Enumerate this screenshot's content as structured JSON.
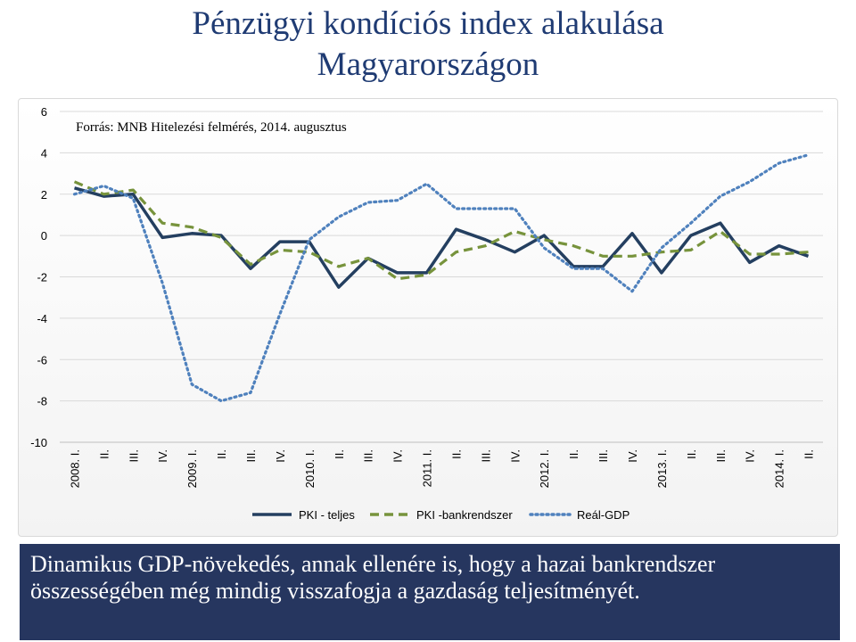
{
  "title": {
    "line1": "Pénzügyi kondíciós index alakulása",
    "line2": "Magyarországon"
  },
  "caption": "Dinamikus GDP-növekedés, annak ellenére is, hogy a hazai bankrendszer összességében még mindig visszafogja a gazdaság teljesítményét.",
  "chart_data": {
    "type": "line",
    "annotation": "Forrás: MNB Hitelezési felmérés, 2014. augusztus",
    "categories": [
      "2008. I.",
      "II.",
      "III.",
      "IV.",
      "2009. I.",
      "II.",
      "III.",
      "IV.",
      "2010. I.",
      "II.",
      "III.",
      "IV.",
      "2011. I.",
      "II.",
      "III.",
      "IV.",
      "2012. I.",
      "II.",
      "III.",
      "IV.",
      "2013. I.",
      "II.",
      "III.",
      "IV.",
      "2014. I.",
      "II."
    ],
    "ylim": [
      -10,
      6
    ],
    "yticks": [
      -10,
      -8,
      -6,
      -4,
      -2,
      0,
      2,
      4,
      6
    ],
    "grid": true,
    "legend_position": "bottom",
    "series": [
      {
        "name": "PKI - teljes",
        "color": "#243f60",
        "style": "solid",
        "values": [
          2.3,
          1.9,
          2.0,
          -0.1,
          0.1,
          0.0,
          -1.6,
          -0.3,
          -0.3,
          -2.5,
          -1.1,
          -1.8,
          -1.8,
          0.3,
          -0.2,
          -0.8,
          0.0,
          -1.5,
          -1.5,
          0.1,
          -1.8,
          0.0,
          0.6,
          -1.3,
          -0.5,
          -1.0
        ]
      },
      {
        "name": "PKI -bankrendszer",
        "color": "#77933c",
        "style": "dashed",
        "values": [
          2.6,
          2.0,
          2.2,
          0.6,
          0.4,
          -0.1,
          -1.4,
          -0.7,
          -0.8,
          -1.5,
          -1.1,
          -2.1,
          -1.9,
          -0.8,
          -0.5,
          0.2,
          -0.2,
          -0.5,
          -1.0,
          -1.0,
          -0.8,
          -0.7,
          0.2,
          -0.9,
          -0.9,
          -0.8
        ]
      },
      {
        "name": "Reál-GDP",
        "color": "#4f81bd",
        "style": "dotted",
        "values": [
          2.0,
          2.4,
          1.8,
          -2.3,
          -7.2,
          -8.0,
          -7.6,
          -3.8,
          -0.2,
          0.9,
          1.6,
          1.7,
          2.5,
          1.3,
          1.3,
          1.3,
          -0.6,
          -1.6,
          -1.6,
          -2.7,
          -0.6,
          0.6,
          1.9,
          2.6,
          3.5,
          3.9
        ]
      }
    ]
  }
}
